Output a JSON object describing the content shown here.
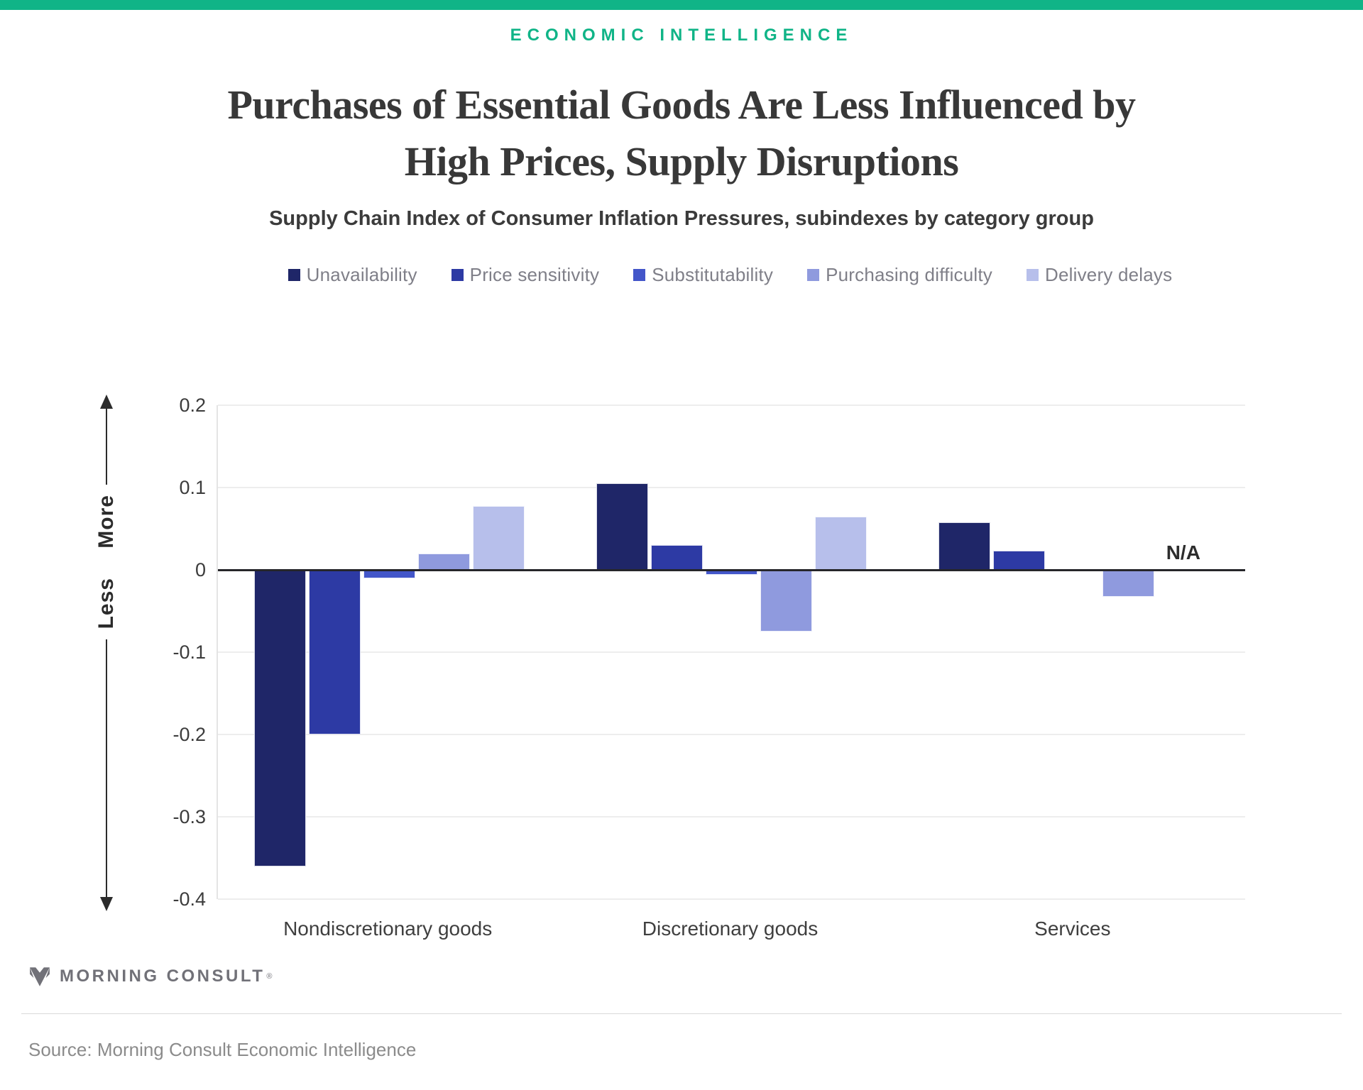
{
  "page": {
    "eyebrow": "ECONOMIC INTELLIGENCE",
    "title": "Purchases of Essential Goods Are Less Influenced by\nHigh Prices, Supply Disruptions",
    "subtitle": "Supply Chain Index of Consumer Inflation Pressures, subindexes by category group",
    "brand": "MORNING CONSULT",
    "brand_registered": "®",
    "source": "Source: Morning Consult Economic Intelligence",
    "accent_teal": "#10b487"
  },
  "chart_data": {
    "type": "bar",
    "title": "Purchases of Essential Goods Are Less Influenced by High Prices, Supply Disruptions",
    "subtitle": "Supply Chain Index of Consumer Inflation Pressures, subindexes by category group",
    "categories": [
      "Nondiscretionary goods",
      "Discretionary goods",
      "Services"
    ],
    "series": [
      {
        "name": "Unavailability",
        "color": "#1f2668",
        "values": [
          -0.36,
          0.105,
          0.058
        ]
      },
      {
        "name": "Price sensitivity",
        "color": "#2d3aa4",
        "values": [
          -0.2,
          0.03,
          0.023
        ]
      },
      {
        "name": "Substitutability",
        "color": "#4356c9",
        "values": [
          -0.01,
          -0.006,
          0
        ]
      },
      {
        "name": "Purchasing difficulty",
        "color": "#8f9ade",
        "values": [
          0.02,
          -0.075,
          -0.033
        ]
      },
      {
        "name": "Delivery delays",
        "color": "#b7bfeb",
        "values": [
          0.078,
          0.065,
          null
        ]
      }
    ],
    "na_label": "N/A",
    "more_label": "More",
    "less_label": "Less",
    "xlabel": "",
    "ylabel": "",
    "ylim": [
      -0.4,
      0.2
    ],
    "yticks": [
      {
        "v": 0.2,
        "label": "0.2"
      },
      {
        "v": 0.1,
        "label": "0.1"
      },
      {
        "v": 0,
        "label": "0"
      },
      {
        "v": -0.1,
        "label": "-0.1"
      },
      {
        "v": -0.2,
        "label": "-0.2"
      },
      {
        "v": -0.3,
        "label": "-0.3"
      },
      {
        "v": -0.4,
        "label": "-0.4"
      }
    ],
    "grid": true,
    "legend_position": "top"
  }
}
